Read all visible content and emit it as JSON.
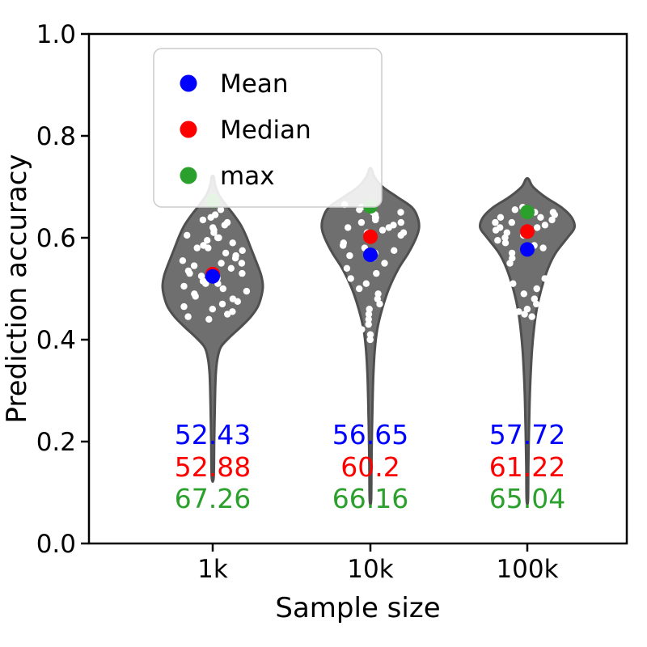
{
  "legend": {
    "items": [
      {
        "key": "mean",
        "label": "Mean",
        "color": "#0000ff"
      },
      {
        "key": "median",
        "label": "Median",
        "color": "#ff0000"
      },
      {
        "key": "max",
        "label": "max",
        "color": "#2ca02c"
      }
    ]
  },
  "chart_data": {
    "type": "violin",
    "title": "",
    "xlabel": "Sample size",
    "ylabel": "Prediction accuracy",
    "ylim": [
      0.0,
      1.0
    ],
    "yticks": [
      {
        "value": 0.0,
        "label": "0.0"
      },
      {
        "value": 0.2,
        "label": "0.2"
      },
      {
        "value": 0.4,
        "label": "0.4"
      },
      {
        "value": 0.6,
        "label": "0.6"
      },
      {
        "value": 0.8,
        "label": "0.8"
      },
      {
        "value": 1.0,
        "label": "1.0"
      }
    ],
    "categories": [
      "1k",
      "10k",
      "100k"
    ],
    "legend_position": "upper left",
    "colors": {
      "mean": "#0000ff",
      "median": "#ff0000",
      "max": "#2ca02c",
      "violin_fill": "#6f6f6f",
      "violin_edge": "#4f4f4f",
      "point": "#ffffff"
    },
    "groups": [
      {
        "category": "1k",
        "stats": {
          "mean": 52.43,
          "median": 52.88,
          "max": 67.26
        },
        "labels": {
          "mean": "52.43",
          "median": "52.88",
          "max": "67.26"
        },
        "rel_width": 1.0,
        "profile": [
          [
            0.13,
            0.02
          ],
          [
            0.2,
            0.03
          ],
          [
            0.28,
            0.045
          ],
          [
            0.33,
            0.06
          ],
          [
            0.36,
            0.09
          ],
          [
            0.385,
            0.16
          ],
          [
            0.405,
            0.34
          ],
          [
            0.425,
            0.56
          ],
          [
            0.445,
            0.76
          ],
          [
            0.465,
            0.9
          ],
          [
            0.485,
            0.97
          ],
          [
            0.505,
            1.0
          ],
          [
            0.525,
            0.97
          ],
          [
            0.545,
            0.9
          ],
          [
            0.565,
            0.82
          ],
          [
            0.585,
            0.74
          ],
          [
            0.605,
            0.66
          ],
          [
            0.625,
            0.56
          ],
          [
            0.645,
            0.42
          ],
          [
            0.665,
            0.26
          ],
          [
            0.685,
            0.12
          ],
          [
            0.705,
            0.045
          ],
          [
            0.72,
            0.02
          ]
        ],
        "points": [
          0.655,
          0.645,
          0.64,
          0.635,
          0.63,
          0.625,
          0.62,
          0.615,
          0.61,
          0.605,
          0.6,
          0.6,
          0.595,
          0.59,
          0.585,
          0.58,
          0.58,
          0.575,
          0.57,
          0.565,
          0.56,
          0.555,
          0.55,
          0.55,
          0.545,
          0.54,
          0.535,
          0.53,
          0.53,
          0.525,
          0.52,
          0.515,
          0.51,
          0.51,
          0.505,
          0.5,
          0.495,
          0.49,
          0.485,
          0.48,
          0.475,
          0.47,
          0.465,
          0.46,
          0.455,
          0.45,
          0.445,
          0.44
        ]
      },
      {
        "category": "10k",
        "stats": {
          "mean": 56.65,
          "median": 60.2,
          "max": 66.16
        },
        "labels": {
          "mean": "56.65",
          "median": "60.2",
          "max": "66.16"
        },
        "rel_width": 0.97,
        "profile": [
          [
            0.085,
            0.015
          ],
          [
            0.15,
            0.022
          ],
          [
            0.22,
            0.032
          ],
          [
            0.28,
            0.045
          ],
          [
            0.33,
            0.06
          ],
          [
            0.38,
            0.09
          ],
          [
            0.42,
            0.14
          ],
          [
            0.46,
            0.24
          ],
          [
            0.5,
            0.38
          ],
          [
            0.54,
            0.58
          ],
          [
            0.57,
            0.78
          ],
          [
            0.6,
            0.94
          ],
          [
            0.62,
            1.0
          ],
          [
            0.64,
            0.97
          ],
          [
            0.66,
            0.85
          ],
          [
            0.68,
            0.55
          ],
          [
            0.7,
            0.25
          ],
          [
            0.72,
            0.08
          ],
          [
            0.735,
            0.025
          ]
        ],
        "points": [
          0.665,
          0.66,
          0.655,
          0.65,
          0.65,
          0.645,
          0.64,
          0.64,
          0.635,
          0.63,
          0.63,
          0.625,
          0.62,
          0.62,
          0.615,
          0.61,
          0.61,
          0.605,
          0.6,
          0.6,
          0.595,
          0.59,
          0.585,
          0.58,
          0.575,
          0.57,
          0.565,
          0.56,
          0.55,
          0.54,
          0.53,
          0.52,
          0.51,
          0.5,
          0.49,
          0.48,
          0.47,
          0.46,
          0.45,
          0.44,
          0.43,
          0.42,
          0.41,
          0.4
        ]
      },
      {
        "category": "100k",
        "stats": {
          "mean": 57.72,
          "median": 61.22,
          "max": 65.04
        },
        "labels": {
          "mean": "57.72",
          "median": "61.22",
          "max": "65.04"
        },
        "rel_width": 0.94,
        "profile": [
          [
            0.085,
            0.015
          ],
          [
            0.15,
            0.022
          ],
          [
            0.22,
            0.035
          ],
          [
            0.28,
            0.05
          ],
          [
            0.33,
            0.07
          ],
          [
            0.38,
            0.1
          ],
          [
            0.42,
            0.14
          ],
          [
            0.46,
            0.2
          ],
          [
            0.5,
            0.3
          ],
          [
            0.54,
            0.44
          ],
          [
            0.57,
            0.6
          ],
          [
            0.6,
            0.85
          ],
          [
            0.62,
            1.0
          ],
          [
            0.64,
            0.94
          ],
          [
            0.66,
            0.72
          ],
          [
            0.68,
            0.38
          ],
          [
            0.7,
            0.12
          ],
          [
            0.715,
            0.03
          ]
        ],
        "points": [
          0.66,
          0.655,
          0.65,
          0.65,
          0.645,
          0.64,
          0.64,
          0.635,
          0.63,
          0.63,
          0.625,
          0.62,
          0.62,
          0.615,
          0.61,
          0.61,
          0.605,
          0.6,
          0.595,
          0.59,
          0.585,
          0.58,
          0.57,
          0.56,
          0.55,
          0.52,
          0.51,
          0.5,
          0.49,
          0.48,
          0.47,
          0.46,
          0.455,
          0.45,
          0.445,
          0.27
        ]
      }
    ]
  }
}
